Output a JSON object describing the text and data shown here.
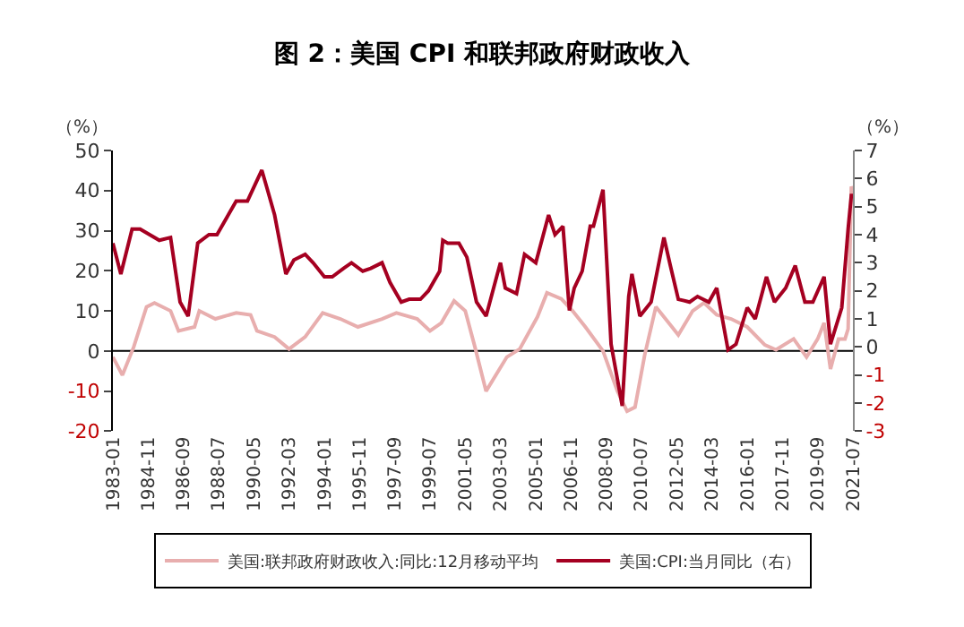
{
  "chart_data": {
    "type": "line",
    "title": "图 2：美国 CPI 和联邦政府财政收入",
    "ylabel": "（%）",
    "y2label": "（%）",
    "xlim": [
      "1983-01",
      "2021-07"
    ],
    "xticks": [
      "1983-01",
      "1984-11",
      "1986-09",
      "1988-07",
      "1990-05",
      "1992-03",
      "1994-01",
      "1995-11",
      "1997-09",
      "1999-07",
      "2001-05",
      "2003-03",
      "2005-01",
      "2006-11",
      "2008-09",
      "2010-07",
      "2012-05",
      "2014-03",
      "2016-01",
      "2017-11",
      "2019-09",
      "2021-07"
    ],
    "ylim": [
      -20,
      50
    ],
    "yticks": [
      -20,
      -10,
      0,
      10,
      20,
      30,
      40,
      50
    ],
    "y2lim": [
      -3,
      7
    ],
    "y2ticks": [
      -3,
      -2,
      -1,
      0,
      1,
      2,
      3,
      4,
      5,
      6,
      7
    ],
    "grid": false,
    "ref_lines": [
      {
        "axis": "y",
        "value": 0,
        "label": null,
        "color": "#000000"
      }
    ],
    "legend": "bottom",
    "marker": "none",
    "line_style": "solid",
    "series": [
      {
        "name": "美国:联邦政府财政收入:同比:12月移动平均",
        "color": "#e8aeae",
        "x": [
          "1983-01",
          "1983-07",
          "1984-02",
          "1984-10",
          "1985-03",
          "1986-01",
          "1986-06",
          "1987-04",
          "1987-07",
          "1988-05",
          "1989-06",
          "1990-03",
          "1990-07",
          "1991-06",
          "1992-03",
          "1993-01",
          "1993-12",
          "1994-11",
          "1995-10",
          "1997-01",
          "1997-10",
          "1998-11",
          "1999-07",
          "2000-02",
          "2000-10",
          "2001-05",
          "2001-11",
          "2002-06",
          "2003-07",
          "2004-03",
          "2005-02",
          "2005-08",
          "2006-05",
          "2006-12",
          "2007-08",
          "2008-07",
          "2009-04",
          "2009-10",
          "2010-03",
          "2010-09",
          "2011-04",
          "2012-02",
          "2012-06",
          "2013-03",
          "2013-10",
          "2014-06",
          "2015-03",
          "2016-01",
          "2016-12",
          "2017-07",
          "2018-06",
          "2019-02",
          "2019-09",
          "2020-01",
          "2020-05",
          "2020-10",
          "2021-02",
          "2021-04",
          "2021-06",
          "2021-07"
        ],
        "values": [
          -1.5,
          -6,
          1,
          11,
          12,
          10,
          5,
          6,
          10,
          8,
          9.5,
          9,
          5,
          3.5,
          0.5,
          3.5,
          9.5,
          8,
          6,
          8,
          9.5,
          8,
          5,
          7,
          12.5,
          10,
          1,
          -10,
          -1.5,
          0.5,
          8.5,
          14.5,
          13,
          10,
          6,
          0,
          -10,
          -15,
          -14,
          -1,
          11,
          6,
          4,
          10,
          12,
          9,
          8,
          6,
          1.5,
          0.3,
          3,
          -1.5,
          3,
          7,
          -4.5,
          3,
          3,
          5.5,
          41,
          40
        ]
      },
      {
        "name": "美国:CPI:当月同比（右）",
        "color": "#a50021",
        "axis": "y2",
        "x": [
          "1983-01",
          "1983-06",
          "1984-01",
          "1984-06",
          "1985-06",
          "1986-01",
          "1986-07",
          "1986-12",
          "1987-06",
          "1988-01",
          "1988-06",
          "1989-01",
          "1989-06",
          "1990-01",
          "1990-10",
          "1991-01",
          "1991-06",
          "1992-01",
          "1992-06",
          "1993-01",
          "1993-06",
          "1994-01",
          "1994-06",
          "1995-01",
          "1995-06",
          "1996-01",
          "1996-06",
          "1997-01",
          "1997-06",
          "1998-01",
          "1998-06",
          "1999-01",
          "1999-06",
          "2000-01",
          "2000-03",
          "2000-06",
          "2001-01",
          "2001-06",
          "2001-12",
          "2002-06",
          "2003-01",
          "2003-03",
          "2003-06",
          "2004-01",
          "2004-06",
          "2005-01",
          "2005-09",
          "2006-01",
          "2006-06",
          "2006-10",
          "2007-01",
          "2007-06",
          "2007-11",
          "2008-01",
          "2008-07",
          "2008-12",
          "2009-07",
          "2009-11",
          "2010-01",
          "2010-06",
          "2011-01",
          "2011-09",
          "2012-01",
          "2012-06",
          "2013-01",
          "2013-06",
          "2014-01",
          "2014-06",
          "2015-01",
          "2015-06",
          "2016-01",
          "2016-06",
          "2017-01",
          "2017-06",
          "2018-01",
          "2018-07",
          "2019-01",
          "2019-06",
          "2020-01",
          "2020-05",
          "2020-12",
          "2021-04",
          "2021-06",
          "2021-07"
        ],
        "values": [
          3.7,
          2.6,
          4.2,
          4.2,
          3.8,
          3.9,
          1.6,
          1.1,
          3.7,
          4.0,
          4.0,
          4.7,
          5.2,
          5.2,
          6.3,
          5.7,
          4.7,
          2.6,
          3.1,
          3.3,
          3.0,
          2.5,
          2.5,
          2.8,
          3.0,
          2.7,
          2.8,
          3.0,
          2.3,
          1.6,
          1.7,
          1.7,
          2.0,
          2.7,
          3.8,
          3.7,
          3.7,
          3.2,
          1.6,
          1.1,
          2.6,
          3.0,
          2.1,
          1.9,
          3.3,
          3.0,
          4.7,
          4.0,
          4.3,
          1.3,
          2.1,
          2.7,
          4.3,
          4.3,
          5.6,
          0.1,
          -2.1,
          1.8,
          2.6,
          1.1,
          1.6,
          3.9,
          2.9,
          1.7,
          1.6,
          1.8,
          1.6,
          2.1,
          -0.1,
          0.1,
          1.4,
          1.0,
          2.5,
          1.6,
          2.1,
          2.9,
          1.6,
          1.6,
          2.5,
          0.1,
          1.4,
          4.2,
          5.4,
          5.4
        ]
      }
    ]
  }
}
